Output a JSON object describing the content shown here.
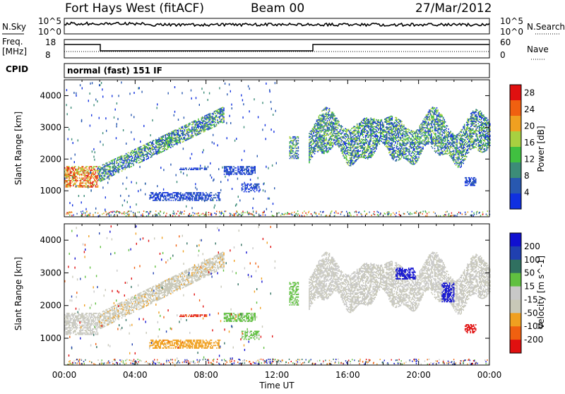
{
  "header": {
    "station": "Fort Hays West (fitACF)",
    "beam": "Beam 00",
    "date": "27/Mar/2012"
  },
  "noise_panel": {
    "left_label": "N.Sky",
    "left_ticks": [
      "10^5",
      "10^0"
    ],
    "right_label": "N.Search",
    "right_ticks": [
      "10^5",
      "10^0"
    ]
  },
  "freq_panel": {
    "left_label_1": "Freq.",
    "left_label_2": "[MHz]",
    "left_ticks": [
      "18",
      "8"
    ],
    "right_label": "Nave",
    "right_ticks": [
      "60",
      "0"
    ]
  },
  "cpid": {
    "label": "CPID",
    "text": "normal (fast) 151 IF"
  },
  "colors": {
    "power": [
      "#1030e0",
      "#2858b0",
      "#3c8c78",
      "#40c040",
      "#a8d040",
      "#f0a020",
      "#f06010",
      "#e01010"
    ],
    "velocity": [
      "#e01010",
      "#f06010",
      "#f0a020",
      "#c8c8b8",
      "#c8c8c8",
      "#60c040",
      "#307060",
      "#2040b0",
      "#1010d0"
    ]
  },
  "chart_data": [
    {
      "type": "heatmap",
      "panel": "power",
      "xlabel": "",
      "ylabel": "Slant Range [km]",
      "x_ticks": [
        "00:00",
        "04:00",
        "08:00",
        "12:00",
        "16:00",
        "20:00",
        "00:00"
      ],
      "xlim_hours": [
        0,
        24
      ],
      "ylim": [
        180,
        4500
      ],
      "y_ticks": [
        1000,
        2000,
        3000,
        4000
      ],
      "colorbar_label": "Power [dB]",
      "colorbar_ticks": [
        "4",
        "8",
        "12",
        "16",
        "20",
        "24",
        "28"
      ],
      "colorbar_range": [
        0,
        30
      ],
      "regions": [
        {
          "t0": 0.0,
          "t1": 1.9,
          "r0": 1100,
          "r1": 1750,
          "level": "high"
        },
        {
          "t0": 1.9,
          "t1": 9.0,
          "r0": 1250,
          "r1": 3700,
          "level": "mid",
          "shape": "rising-band"
        },
        {
          "t0": 4.8,
          "t1": 8.8,
          "r0": 680,
          "r1": 950,
          "level": "low"
        },
        {
          "t0": 6.5,
          "t1": 8.0,
          "r0": 1650,
          "r1": 1720,
          "level": "low"
        },
        {
          "t0": 9.0,
          "t1": 10.8,
          "r0": 1500,
          "r1": 1750,
          "level": "low"
        },
        {
          "t0": 10.0,
          "t1": 11.0,
          "r0": 950,
          "r1": 1200,
          "level": "low"
        },
        {
          "t0": 12.7,
          "t1": 13.2,
          "r0": 2000,
          "r1": 2700,
          "level": "mid"
        },
        {
          "t0": 13.8,
          "t1": 24.0,
          "r0": 1900,
          "r1": 3600,
          "level": "mid",
          "shape": "wavy-band"
        },
        {
          "t0": 22.6,
          "t1": 23.2,
          "r0": 1150,
          "r1": 1400,
          "level": "low"
        }
      ]
    },
    {
      "type": "heatmap",
      "panel": "velocity",
      "xlabel": "Time UT",
      "ylabel": "Slant Range [km]",
      "x_ticks": [
        "00:00",
        "04:00",
        "08:00",
        "12:00",
        "16:00",
        "20:00",
        "00:00"
      ],
      "xlim_hours": [
        0,
        24
      ],
      "ylim": [
        180,
        4500
      ],
      "y_ticks": [
        1000,
        2000,
        3000,
        4000
      ],
      "colorbar_label": "Velocity [m s^-1]",
      "colorbar_ticks": [
        "200",
        "100",
        "50",
        "15",
        "-15",
        "-50",
        "-100",
        "-200"
      ],
      "regions": [
        {
          "t0": 0.0,
          "t1": 1.9,
          "r0": 1100,
          "r1": 1750,
          "velocity": 0
        },
        {
          "t0": 1.9,
          "t1": 9.0,
          "r0": 1250,
          "r1": 3700,
          "velocity": -20,
          "shape": "rising-band"
        },
        {
          "t0": 4.8,
          "t1": 8.8,
          "r0": 680,
          "r1": 950,
          "velocity": -60
        },
        {
          "t0": 6.5,
          "t1": 8.0,
          "r0": 1650,
          "r1": 1720,
          "velocity": -150
        },
        {
          "t0": 9.0,
          "t1": 10.8,
          "r0": 1500,
          "r1": 1750,
          "velocity": 40
        },
        {
          "t0": 10.0,
          "t1": 11.0,
          "r0": 950,
          "r1": 1200,
          "velocity": 40
        },
        {
          "t0": 12.7,
          "t1": 13.2,
          "r0": 2000,
          "r1": 2700,
          "velocity": 40
        },
        {
          "t0": 13.8,
          "t1": 24.0,
          "r0": 1900,
          "r1": 3600,
          "velocity": 0,
          "shape": "wavy-band"
        },
        {
          "t0": 18.7,
          "t1": 19.8,
          "r0": 2800,
          "r1": 3150,
          "velocity": 200
        },
        {
          "t0": 21.3,
          "t1": 22.0,
          "r0": 2100,
          "r1": 2700,
          "velocity": 200
        },
        {
          "t0": 22.6,
          "t1": 23.2,
          "r0": 1150,
          "r1": 1400,
          "velocity": -200
        }
      ]
    }
  ]
}
